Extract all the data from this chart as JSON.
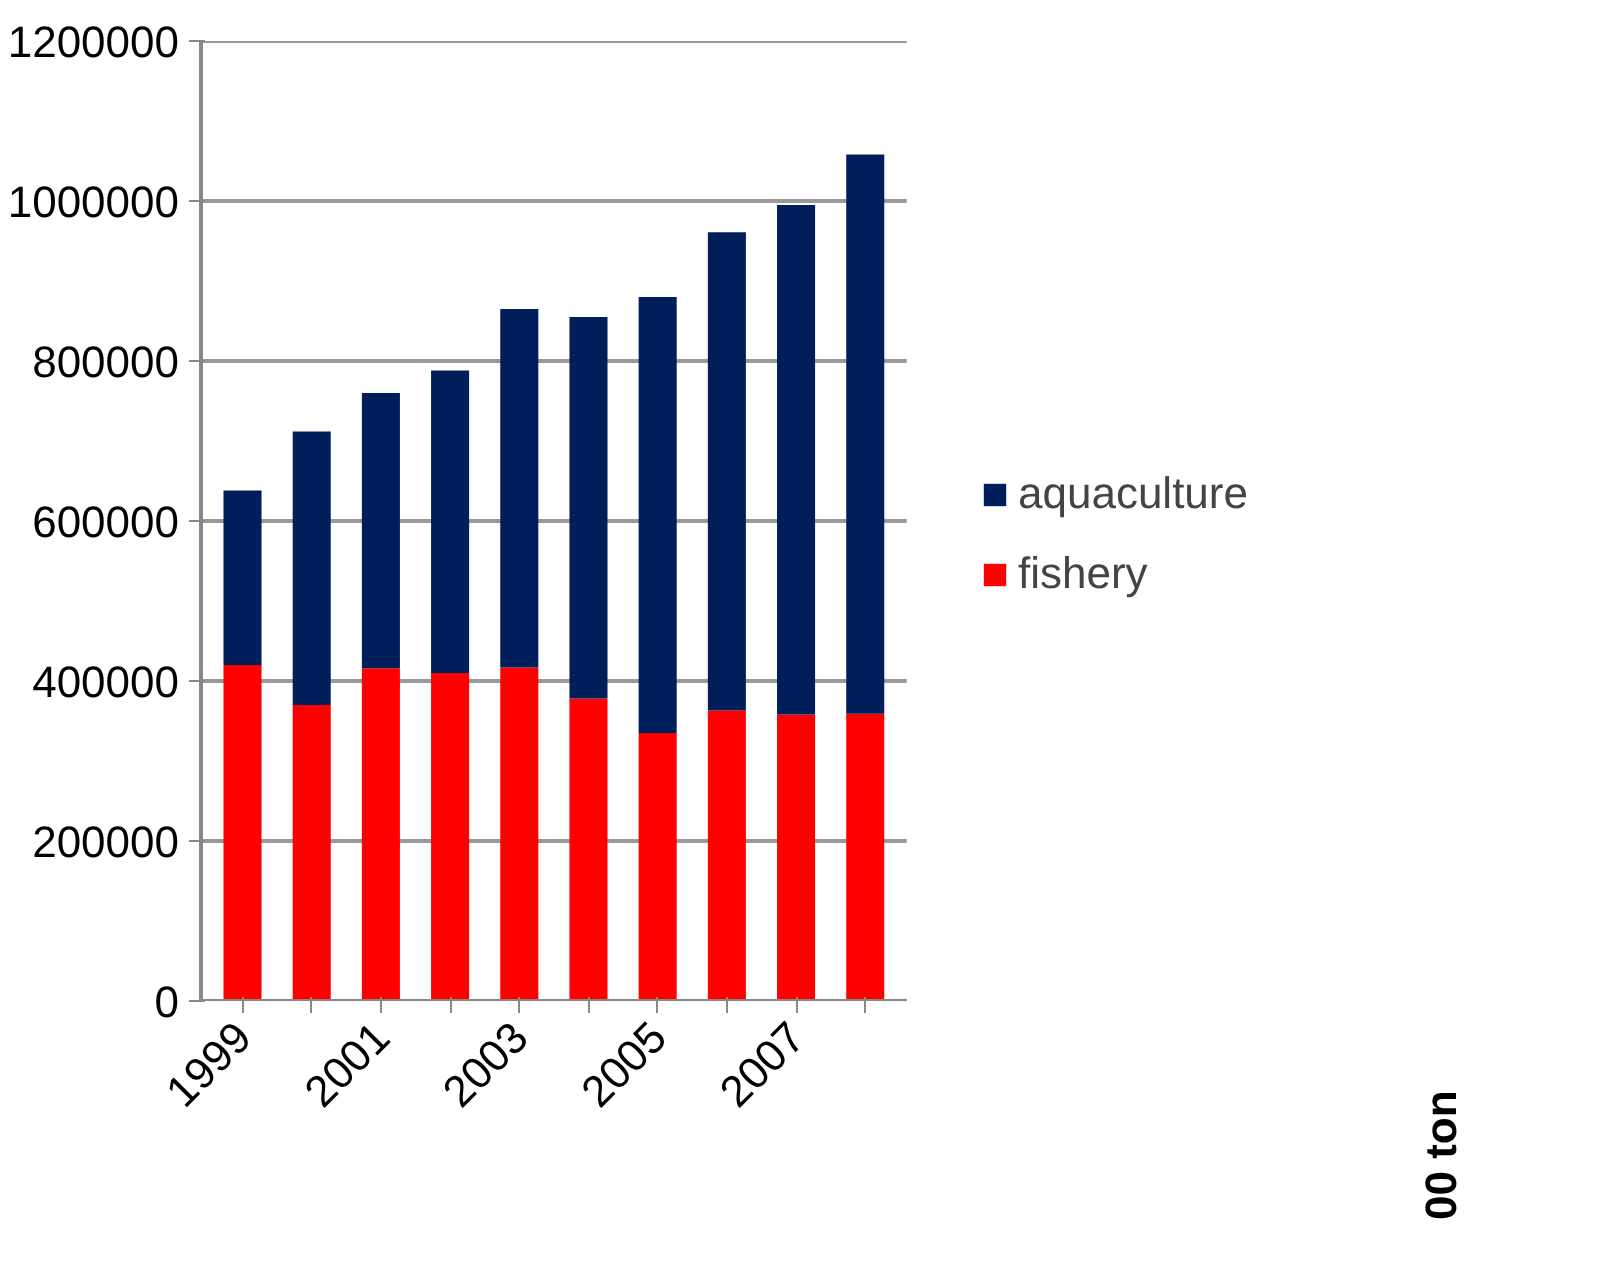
{
  "chart_data": {
    "type": "bar",
    "stacked": true,
    "categories": [
      "1999",
      null,
      "2001",
      null,
      "2003",
      null,
      "2005",
      null,
      "2007",
      null
    ],
    "series": [
      {
        "name": "fishery",
        "color": "#ff0000",
        "values": [
          420000,
          370000,
          416000,
          410000,
          417000,
          378000,
          335000,
          363000,
          358000,
          359000
        ]
      },
      {
        "name": "aquaculture",
        "color": "#001e5a",
        "values": [
          218000,
          342000,
          344000,
          378000,
          448000,
          477000,
          545000,
          598000,
          637000,
          699000
        ]
      }
    ],
    "ylim": [
      0,
      1200000
    ],
    "yticks": [
      0,
      200000,
      400000,
      600000,
      800000,
      1000000,
      1200000
    ],
    "grid": "y",
    "legend": "right",
    "annotations": [
      "00 ton"
    ]
  }
}
